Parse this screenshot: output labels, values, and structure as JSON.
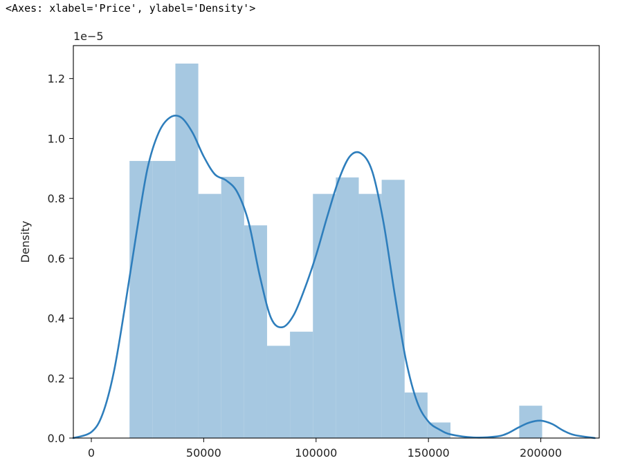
{
  "repr_text": "<Axes: xlabel='Price', ylabel='Density'>",
  "colors": {
    "bar": "#a6c8e1",
    "kde": "#2e7ebc",
    "axis": "#000000"
  },
  "chart_data": {
    "type": "bar",
    "subtype": "histogram with kde line",
    "xlabel": "",
    "ylabel": "Density",
    "offset_text": "1e−5",
    "xlim": [
      -8000,
      226000
    ],
    "ylim": [
      0,
      1.31
    ],
    "xticks": [
      0,
      50000,
      100000,
      150000,
      200000
    ],
    "xtick_labels": [
      "0",
      "50000",
      "100000",
      "150000",
      "200000"
    ],
    "yticks": [
      0.0,
      0.2,
      0.4,
      0.6,
      0.8,
      1.0,
      1.2
    ],
    "ytick_labels": [
      "0.0",
      "0.2",
      "0.4",
      "0.6",
      "0.8",
      "1.0",
      "1.2"
    ],
    "bins": [
      {
        "x0": 17000,
        "x1": 27200,
        "value": 0.925
      },
      {
        "x0": 27200,
        "x1": 37400,
        "value": 0.925
      },
      {
        "x0": 37400,
        "x1": 47600,
        "value": 1.25
      },
      {
        "x0": 47600,
        "x1": 57800,
        "value": 0.815
      },
      {
        "x0": 57800,
        "x1": 68000,
        "value": 0.872
      },
      {
        "x0": 68000,
        "x1": 78200,
        "value": 0.71
      },
      {
        "x0": 78200,
        "x1": 88400,
        "value": 0.308
      },
      {
        "x0": 88400,
        "x1": 98600,
        "value": 0.355
      },
      {
        "x0": 98600,
        "x1": 108800,
        "value": 0.815
      },
      {
        "x0": 108800,
        "x1": 119000,
        "value": 0.87
      },
      {
        "x0": 119000,
        "x1": 129200,
        "value": 0.815
      },
      {
        "x0": 129200,
        "x1": 139400,
        "value": 0.862
      },
      {
        "x0": 139400,
        "x1": 149600,
        "value": 0.152
      },
      {
        "x0": 149600,
        "x1": 159800,
        "value": 0.052
      },
      {
        "x0": 159800,
        "x1": 170000,
        "value": 0.0
      },
      {
        "x0": 170000,
        "x1": 180200,
        "value": 0.0
      },
      {
        "x0": 180200,
        "x1": 190400,
        "value": 0.0
      },
      {
        "x0": 190400,
        "x1": 200600,
        "value": 0.108
      }
    ],
    "kde": {
      "x": [
        -8000,
        0,
        5000,
        10000,
        15000,
        20000,
        25000,
        30000,
        35000,
        40000,
        45000,
        50000,
        55000,
        60000,
        65000,
        70000,
        75000,
        80000,
        85000,
        90000,
        95000,
        100000,
        105000,
        110000,
        115000,
        120000,
        125000,
        130000,
        135000,
        140000,
        145000,
        150000,
        155000,
        160000,
        170000,
        180000,
        185000,
        190000,
        195000,
        200000,
        205000,
        210000,
        215000,
        224000
      ],
      "y": [
        0.0,
        0.02,
        0.08,
        0.22,
        0.44,
        0.68,
        0.9,
        1.02,
        1.07,
        1.07,
        1.02,
        0.94,
        0.88,
        0.86,
        0.82,
        0.72,
        0.54,
        0.4,
        0.37,
        0.41,
        0.5,
        0.61,
        0.74,
        0.86,
        0.94,
        0.95,
        0.89,
        0.72,
        0.48,
        0.26,
        0.12,
        0.055,
        0.028,
        0.012,
        0.002,
        0.005,
        0.015,
        0.035,
        0.052,
        0.058,
        0.047,
        0.025,
        0.01,
        0.0
      ]
    }
  }
}
